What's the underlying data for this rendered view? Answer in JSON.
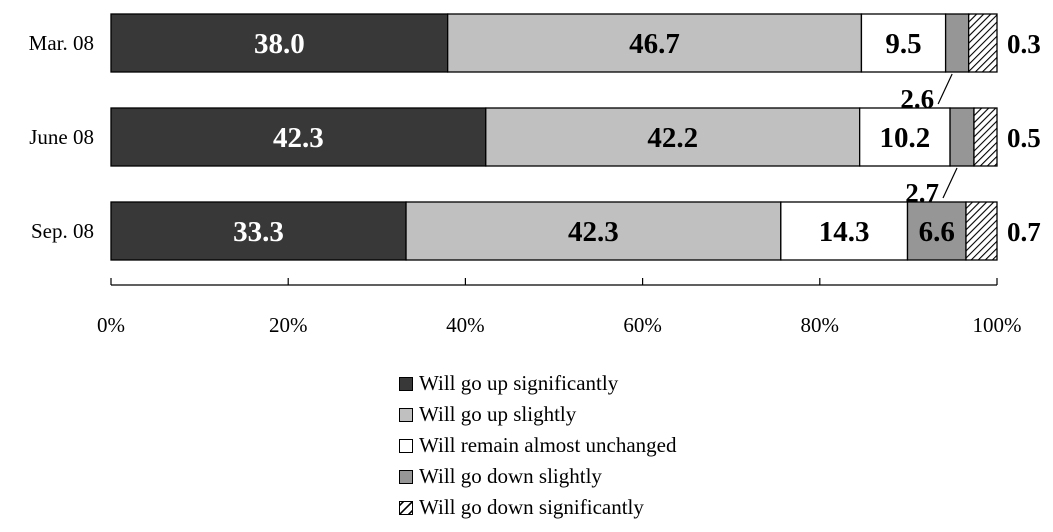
{
  "chart_data": {
    "type": "bar",
    "orientation": "horizontal",
    "stacked": "percent",
    "categories": [
      "Mar. 08",
      "June 08",
      "Sep. 08"
    ],
    "series": [
      {
        "name": "Will go up significantly",
        "values": [
          38.0,
          42.3,
          33.3
        ],
        "color": "#383838",
        "label_color": "#ffffff"
      },
      {
        "name": "Will go up slightly",
        "values": [
          46.7,
          42.2,
          42.3
        ],
        "color": "#c0c0c0",
        "label_color": "#000000"
      },
      {
        "name": "Will remain almost unchanged",
        "values": [
          9.5,
          10.2,
          14.3
        ],
        "color": "#ffffff",
        "label_color": "#000000"
      },
      {
        "name": "Will go down slightly",
        "values": [
          2.6,
          2.7,
          6.6
        ],
        "color": "#969696",
        "label_color": "#000000"
      },
      {
        "name": "Will go down significantly",
        "values": [
          0.3,
          0.5,
          0.7
        ],
        "color": "#ffffff",
        "pattern": "diagonal-hatch",
        "label_color": "#000000"
      }
    ],
    "data_labels": [
      [
        "38.0",
        "46.7",
        "9.5",
        "2.6",
        "0.3"
      ],
      [
        "42.3",
        "42.2",
        "10.2",
        "2.7",
        "0.5"
      ],
      [
        "33.3",
        "42.3",
        "14.3",
        "6.6",
        "0.7"
      ]
    ],
    "xlim": [
      0,
      100
    ],
    "x_ticks": [
      "0%",
      "20%",
      "40%",
      "60%",
      "80%",
      "100%"
    ],
    "title": "",
    "xlabel": "",
    "ylabel": "",
    "grid": false,
    "legend_position": "bottom-center"
  }
}
